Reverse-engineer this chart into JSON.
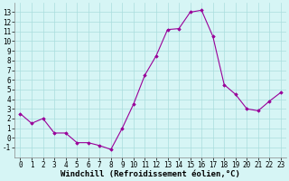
{
  "x": [
    0,
    1,
    2,
    3,
    4,
    5,
    6,
    7,
    8,
    9,
    10,
    11,
    12,
    13,
    14,
    15,
    16,
    17,
    18,
    19,
    20,
    21,
    22,
    23
  ],
  "y": [
    2.5,
    1.5,
    2.0,
    0.5,
    0.5,
    -0.5,
    -0.5,
    -0.8,
    -1.2,
    1.0,
    3.5,
    6.5,
    8.5,
    11.2,
    11.3,
    13.0,
    13.2,
    10.5,
    5.5,
    4.5,
    3.0,
    2.8,
    3.8,
    4.7
  ],
  "line_color": "#990099",
  "marker": "D",
  "markersize": 1.8,
  "linewidth": 0.8,
  "bg_color": "#d6f5f5",
  "grid_color": "#aadddd",
  "xlabel": "Windchill (Refroidissement éolien,°C)",
  "xlabel_fontsize": 6.5,
  "tick_fontsize": 5.5,
  "xlim": [
    -0.5,
    23.5
  ],
  "ylim": [
    -2,
    14
  ],
  "yticks": [
    -1,
    0,
    1,
    2,
    3,
    4,
    5,
    6,
    7,
    8,
    9,
    10,
    11,
    12,
    13
  ],
  "xticks": [
    0,
    1,
    2,
    3,
    4,
    5,
    6,
    7,
    8,
    9,
    10,
    11,
    12,
    13,
    14,
    15,
    16,
    17,
    18,
    19,
    20,
    21,
    22,
    23
  ]
}
